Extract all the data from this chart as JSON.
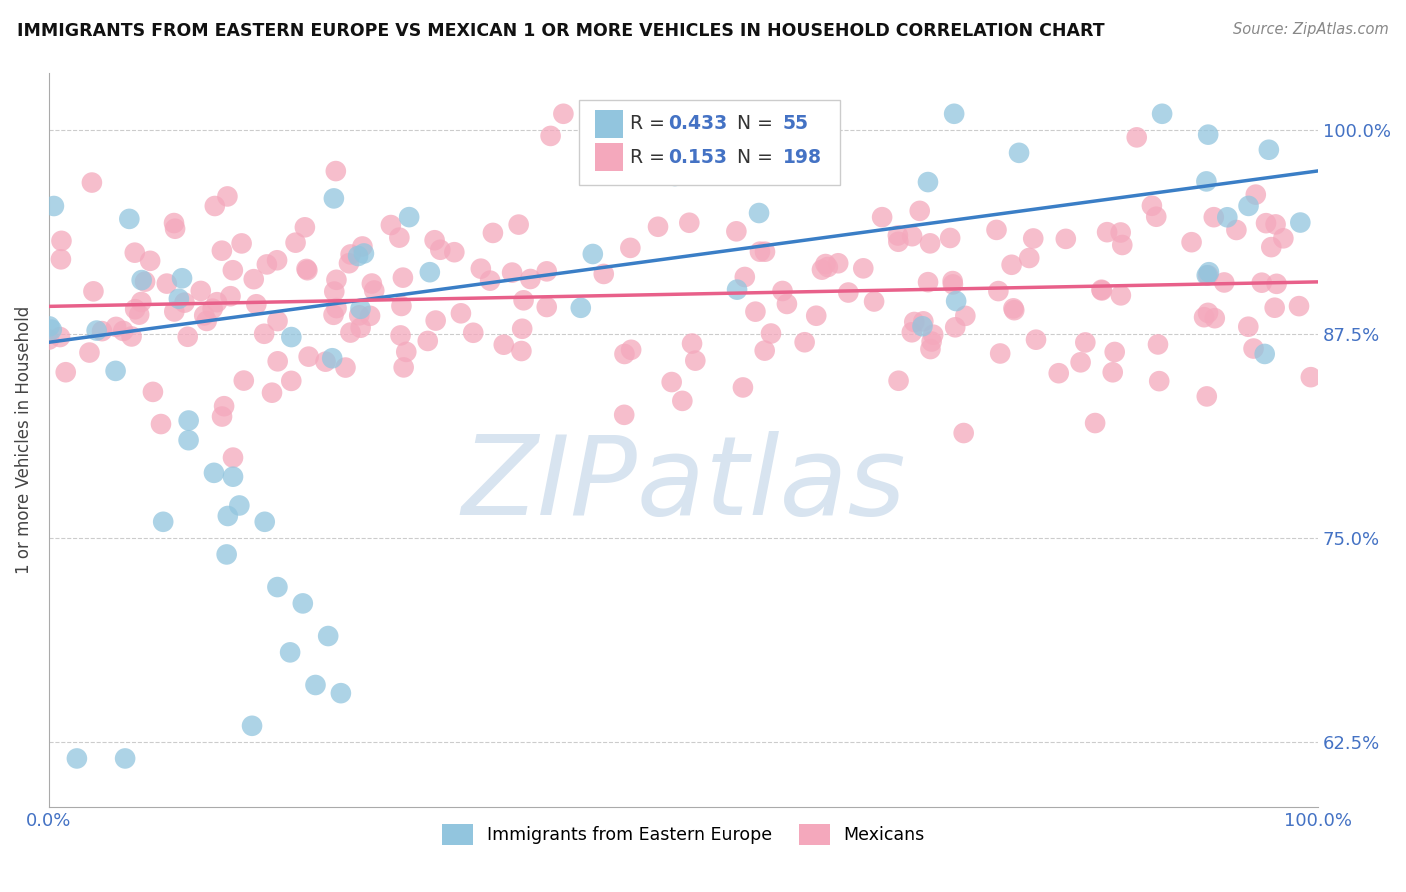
{
  "title": "IMMIGRANTS FROM EASTERN EUROPE VS MEXICAN 1 OR MORE VEHICLES IN HOUSEHOLD CORRELATION CHART",
  "source": "Source: ZipAtlas.com",
  "ylabel": "1 or more Vehicles in Household",
  "xlim": [
    0.0,
    1.0
  ],
  "ylim": [
    0.585,
    1.035
  ],
  "yticks": [
    0.625,
    0.75,
    0.875,
    1.0
  ],
  "ytick_labels": [
    "62.5%",
    "75.0%",
    "87.5%",
    "100.0%"
  ],
  "xtick_labels": [
    "0.0%",
    "",
    "",
    "",
    "100.0%"
  ],
  "legend_bottom_blue": "Immigrants from Eastern Europe",
  "legend_bottom_pink": "Mexicans",
  "blue_color": "#92C5DE",
  "pink_color": "#F4A8BC",
  "blue_line_color": "#3A7EC6",
  "pink_line_color": "#E8608A",
  "blue_line_start_y": 0.87,
  "blue_line_end_y": 0.975,
  "pink_line_start_y": 0.892,
  "pink_line_end_y": 0.907,
  "watermark": "ZIPatlas",
  "watermark_color": "#D8E4F0",
  "background_color": "#ffffff",
  "legend_text_color": "#333333",
  "legend_num_color": "#4472C4",
  "R_blue_str": "0.433",
  "N_blue_str": "55",
  "R_pink_str": "0.153",
  "N_pink_str": "198"
}
